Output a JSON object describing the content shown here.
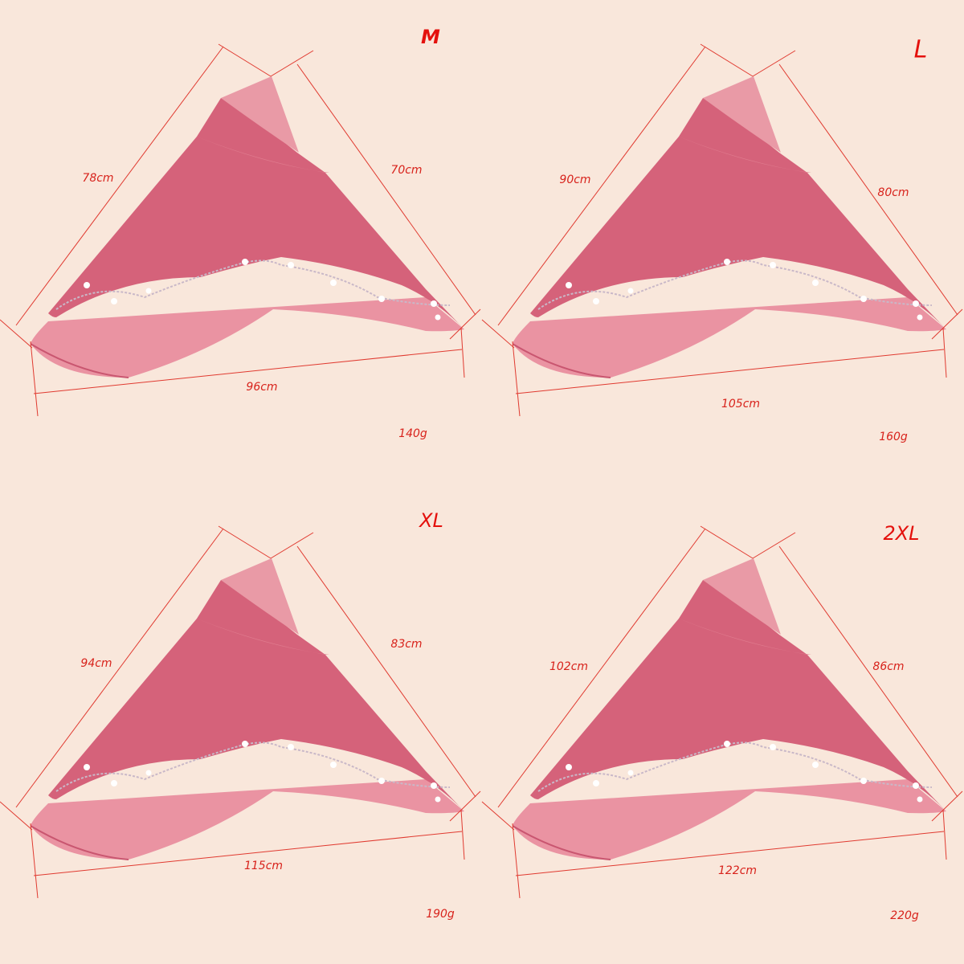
{
  "colors": {
    "background": "#f9e7db",
    "fabric": "#d9627a",
    "mesh": "#e99aa6",
    "dimension_line": "#e03a30",
    "text": "#d8231c"
  },
  "panels": [
    {
      "size": "M",
      "left": "78cm",
      "right": "70cm",
      "bottom": "96cm",
      "weight": "140g"
    },
    {
      "size": "L",
      "left": "90cm",
      "right": "80cm",
      "bottom": "105cm",
      "weight": "160g"
    },
    {
      "size": "XL",
      "left": "94cm",
      "right": "83cm",
      "bottom": "115cm",
      "weight": "190g"
    },
    {
      "size": "2XL",
      "left": "102cm",
      "right": "86cm",
      "bottom": "122cm",
      "weight": "220g"
    }
  ]
}
